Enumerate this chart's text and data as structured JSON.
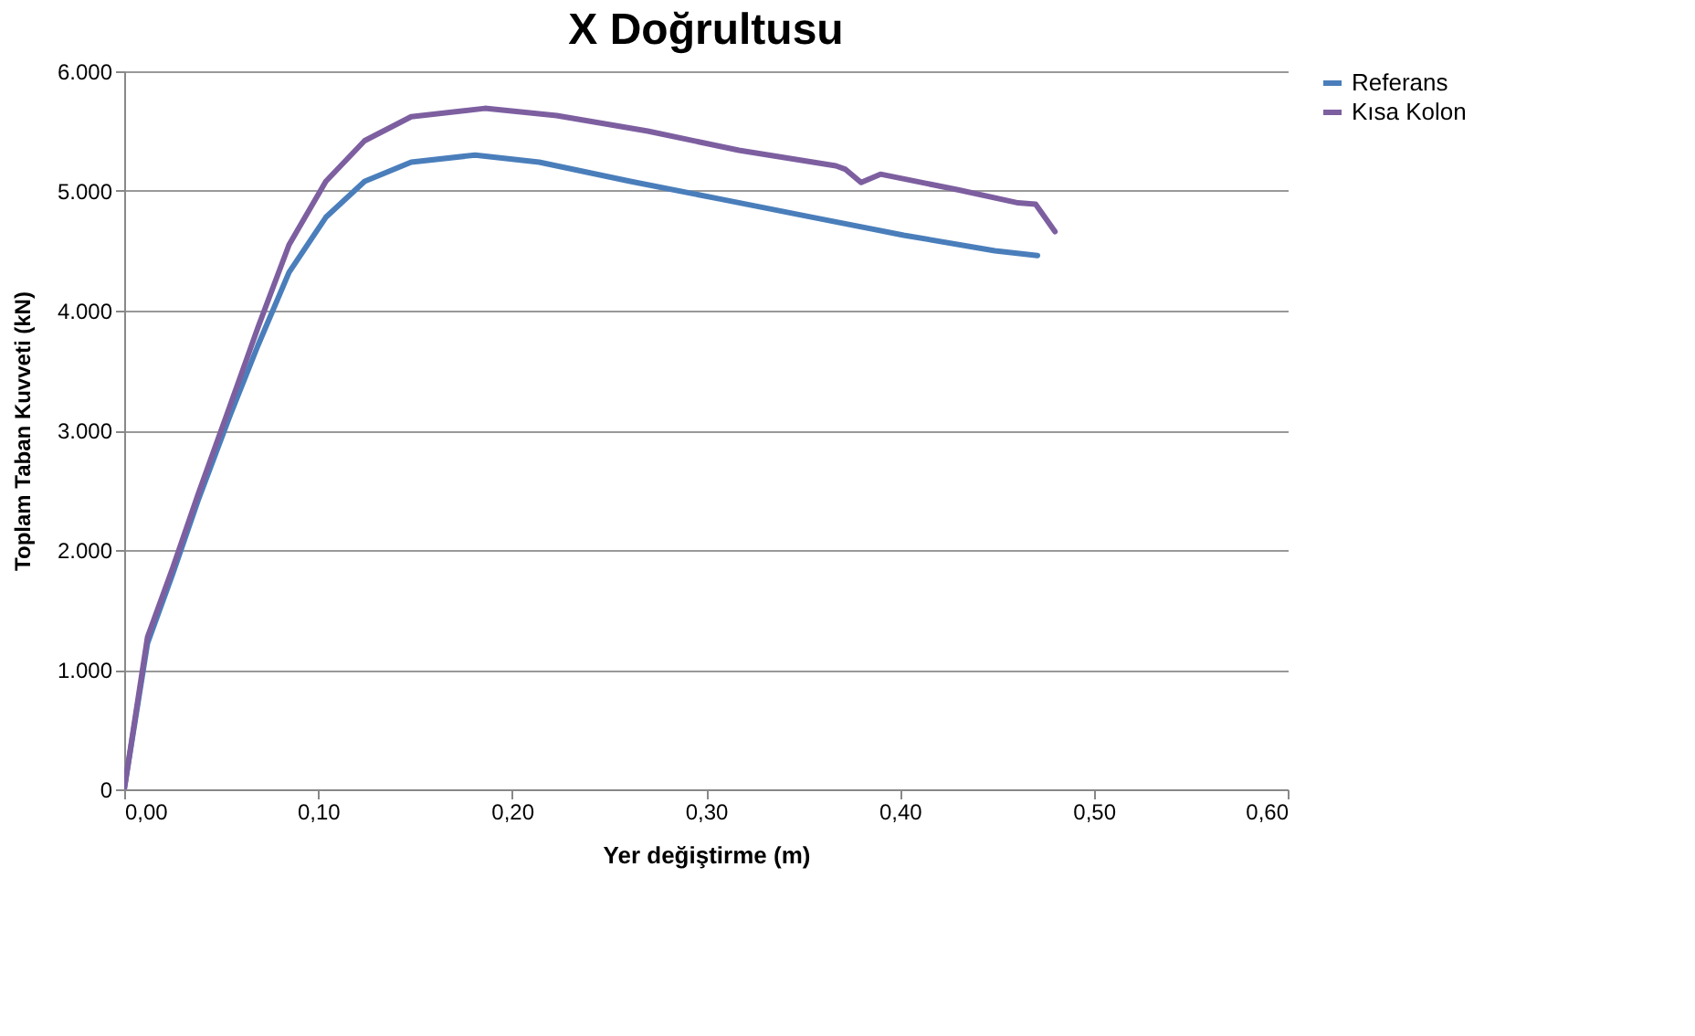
{
  "chart_data": {
    "type": "line",
    "title": "X Doğrultusu",
    "xlabel": "Yer değiştirme (m)",
    "ylabel": "Toplam Taban Kuvveti (kN)",
    "xlim": [
      0,
      0.6
    ],
    "xticks": [
      {
        "value": 0,
        "label": "0,00"
      },
      {
        "value": 0.1,
        "label": "0,10"
      },
      {
        "value": 0.2,
        "label": "0,20"
      },
      {
        "value": 0.3,
        "label": "0,30"
      },
      {
        "value": 0.4,
        "label": "0,40"
      },
      {
        "value": 0.5,
        "label": "0,50"
      },
      {
        "value": 0.6,
        "label": "0,60"
      }
    ],
    "ylim": [
      0,
      6000
    ],
    "yticks": [
      0,
      {
        "value": 1000,
        "label": "1.000"
      },
      {
        "value": 2000,
        "label": "2.000"
      },
      {
        "value": 3000,
        "label": "3.000"
      },
      {
        "value": 4000,
        "label": "4.000"
      },
      {
        "value": 5000,
        "label": "5.000"
      },
      {
        "value": 6000,
        "label": "6.000"
      }
    ],
    "grid": "y",
    "legend": "right",
    "marker": "none",
    "line_style": "solid",
    "series": [
      {
        "name": "Referans",
        "color": "#4a7ebb",
        "x": [
          0,
          0.012,
          0.025,
          0.038,
          0.054,
          0.069,
          0.085,
          0.104,
          0.124,
          0.148,
          0.181,
          0.214,
          0.261,
          0.308,
          0.355,
          0.402,
          0.449,
          0.471
        ],
        "values": [
          0,
          1220,
          1800,
          2410,
          3100,
          3710,
          4320,
          4780,
          5080,
          5240,
          5300,
          5240,
          5080,
          4930,
          4780,
          4630,
          4500,
          4460
        ]
      },
      {
        "name": "Kısa Kolon",
        "color": "#7d5fa0",
        "x": [
          0,
          0.012,
          0.025,
          0.038,
          0.054,
          0.069,
          0.085,
          0.104,
          0.124,
          0.148,
          0.186,
          0.223,
          0.27,
          0.317,
          0.367,
          0.372,
          0.38,
          0.39,
          0.43,
          0.461,
          0.47,
          0.48
        ],
        "values": [
          0,
          1270,
          1850,
          2460,
          3180,
          3860,
          4550,
          5080,
          5420,
          5620,
          5690,
          5630,
          5500,
          5340,
          5210,
          5180,
          5070,
          5140,
          5010,
          4900,
          4890,
          4660
        ]
      }
    ]
  }
}
